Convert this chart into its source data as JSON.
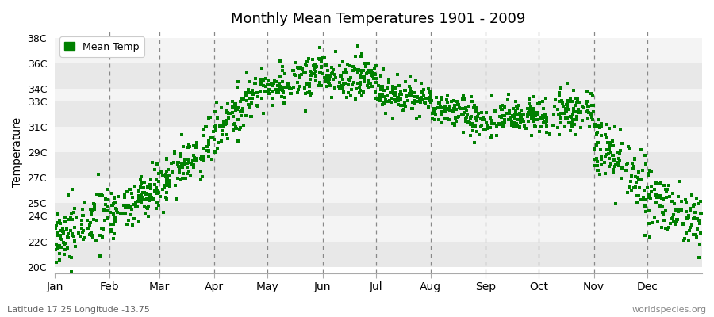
{
  "title": "Monthly Mean Temperatures 1901 - 2009",
  "ylabel": "Temperature",
  "subtitle_left": "Latitude 17.25 Longitude -13.75",
  "subtitle_right": "worldspecies.org",
  "legend_label": "Mean Temp",
  "marker_color": "#008000",
  "bg_color": "#ffffff",
  "stripe_colors": [
    "#e8e8e8",
    "#f4f4f4"
  ],
  "ytick_labels": [
    "20C",
    "22C",
    "24C",
    "25C",
    "27C",
    "29C",
    "31C",
    "33C",
    "34C",
    "36C",
    "38C"
  ],
  "ytick_values": [
    20,
    22,
    24,
    25,
    27,
    29,
    31,
    33,
    34,
    36,
    38
  ],
  "ylim": [
    19.5,
    38.5
  ],
  "months": [
    "Jan",
    "Feb",
    "Mar",
    "Apr",
    "May",
    "Jun",
    "Jul",
    "Aug",
    "Sep",
    "Oct",
    "Nov",
    "Dec"
  ],
  "monthly_start": [
    22.0,
    23.5,
    26.5,
    30.5,
    34.0,
    35.0,
    34.0,
    32.5,
    31.5,
    32.0,
    30.0,
    25.5
  ],
  "monthly_end": [
    24.5,
    26.5,
    30.0,
    34.5,
    35.5,
    35.0,
    33.0,
    31.5,
    32.0,
    32.5,
    26.0,
    23.5
  ],
  "monthly_spread": [
    1.2,
    0.9,
    1.0,
    0.9,
    0.8,
    0.8,
    0.7,
    0.7,
    0.7,
    0.8,
    1.3,
    1.2
  ],
  "n_years": 109,
  "days_in_month": [
    31,
    28,
    31,
    30,
    31,
    30,
    31,
    31,
    30,
    31,
    30,
    31
  ],
  "seed": 42
}
